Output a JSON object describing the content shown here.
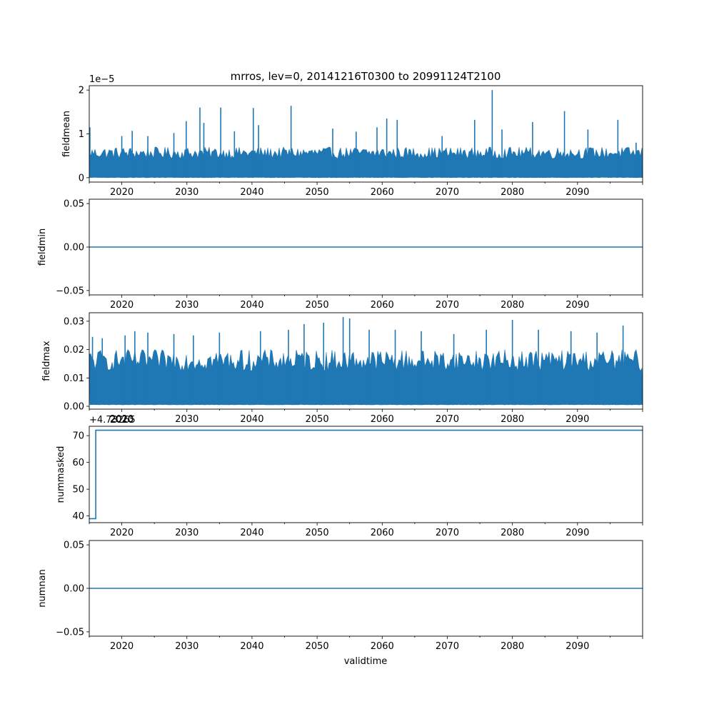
{
  "figure": {
    "title": "mrros, lev=0, 20141216T0300 to 20991124T2100",
    "xlabel": "validtime",
    "line_color": "#1f77b4"
  },
  "chart_data": [
    {
      "type": "line",
      "ylabel": "fieldmean",
      "xlim": [
        2015.0,
        2100.0
      ],
      "ylim": [
        -1e-06,
        2.1e-05
      ],
      "x_ticks": [
        "2020",
        "2030",
        "2040",
        "2050",
        "2060",
        "2070",
        "2080",
        "2090"
      ],
      "y_ticks": [
        "0",
        "1",
        "2"
      ],
      "y_tick_values": [
        0,
        1e-05,
        2e-05
      ],
      "offset_text": "1e−5",
      "band": {
        "low": 0.0,
        "high_typical": 7e-06
      },
      "spikes": [
        {
          "x": 2015.1,
          "y": 1.15e-05
        },
        {
          "x": 2020.0,
          "y": 9.5e-06
        },
        {
          "x": 2021.6,
          "y": 1.07e-05
        },
        {
          "x": 2024.0,
          "y": 9.5e-06
        },
        {
          "x": 2028.0,
          "y": 1.02e-05
        },
        {
          "x": 2029.9,
          "y": 1.29e-05
        },
        {
          "x": 2032.0,
          "y": 1.6e-05
        },
        {
          "x": 2032.6,
          "y": 1.25e-05
        },
        {
          "x": 2035.2,
          "y": 1.6e-05
        },
        {
          "x": 2037.3,
          "y": 1.06e-05
        },
        {
          "x": 2040.2,
          "y": 1.59e-05
        },
        {
          "x": 2041.0,
          "y": 1.2e-05
        },
        {
          "x": 2046.0,
          "y": 1.64e-05
        },
        {
          "x": 2052.4,
          "y": 1.12e-05
        },
        {
          "x": 2056.0,
          "y": 1.05e-05
        },
        {
          "x": 2059.2,
          "y": 1.15e-05
        },
        {
          "x": 2060.7,
          "y": 1.35e-05
        },
        {
          "x": 2062.3,
          "y": 1.32e-05
        },
        {
          "x": 2069.2,
          "y": 9.5e-06
        },
        {
          "x": 2074.2,
          "y": 1.32e-05
        },
        {
          "x": 2076.9,
          "y": 2e-05
        },
        {
          "x": 2078.4,
          "y": 1.1e-05
        },
        {
          "x": 2083.1,
          "y": 1.27e-05
        },
        {
          "x": 2088.0,
          "y": 1.52e-05
        },
        {
          "x": 2091.6,
          "y": 1.1e-05
        },
        {
          "x": 2096.2,
          "y": 1.32e-05
        },
        {
          "x": 2099.0,
          "y": 8e-06
        }
      ]
    },
    {
      "type": "line",
      "ylabel": "fieldmin",
      "xlim": [
        2015.0,
        2100.0
      ],
      "ylim": [
        -0.055,
        0.055
      ],
      "x_ticks": [
        "2020",
        "2030",
        "2040",
        "2050",
        "2060",
        "2070",
        "2080",
        "2090"
      ],
      "y_ticks": [
        "−0.05",
        "0.00",
        "0.05"
      ],
      "y_tick_values": [
        -0.05,
        0.0,
        0.05
      ],
      "series": [
        {
          "x": [
            2015.0,
            2100.0
          ],
          "y": [
            0.0,
            0.0
          ]
        }
      ]
    },
    {
      "type": "line",
      "ylabel": "fieldmax",
      "xlim": [
        2015.0,
        2100.0
      ],
      "ylim": [
        -0.001,
        0.033
      ],
      "x_ticks": [
        "2020",
        "2030",
        "2040",
        "2050",
        "2060",
        "2070",
        "2080",
        "2090"
      ],
      "y_ticks": [
        "0.00",
        "0.01",
        "0.02",
        "0.03"
      ],
      "y_tick_values": [
        0.0,
        0.01,
        0.02,
        0.03
      ],
      "band": {
        "low": 0.0005,
        "high_typical": 0.02
      },
      "spikes": [
        {
          "x": 2015.5,
          "y": 0.0245
        },
        {
          "x": 2017.0,
          "y": 0.024
        },
        {
          "x": 2020.5,
          "y": 0.025
        },
        {
          "x": 2022.0,
          "y": 0.0265
        },
        {
          "x": 2024.0,
          "y": 0.026
        },
        {
          "x": 2028.0,
          "y": 0.0255
        },
        {
          "x": 2031.0,
          "y": 0.025
        },
        {
          "x": 2035.0,
          "y": 0.026
        },
        {
          "x": 2041.3,
          "y": 0.0265
        },
        {
          "x": 2045.6,
          "y": 0.027
        },
        {
          "x": 2048.0,
          "y": 0.029
        },
        {
          "x": 2051.0,
          "y": 0.0295
        },
        {
          "x": 2054.0,
          "y": 0.0315
        },
        {
          "x": 2055.0,
          "y": 0.031
        },
        {
          "x": 2058.0,
          "y": 0.027
        },
        {
          "x": 2062.0,
          "y": 0.027
        },
        {
          "x": 2066.0,
          "y": 0.0265
        },
        {
          "x": 2071.0,
          "y": 0.0255
        },
        {
          "x": 2076.0,
          "y": 0.027
        },
        {
          "x": 2080.0,
          "y": 0.0305
        },
        {
          "x": 2084.0,
          "y": 0.027
        },
        {
          "x": 2089.0,
          "y": 0.0265
        },
        {
          "x": 2093.0,
          "y": 0.026
        },
        {
          "x": 2097.0,
          "y": 0.0285
        }
      ]
    },
    {
      "type": "line",
      "ylabel": "nummasked",
      "xlim": [
        2015.0,
        2100.0
      ],
      "ylim": [
        37.5,
        73.5
      ],
      "x_ticks": [
        "2020",
        "2030",
        "2040",
        "2050",
        "2060",
        "2070",
        "2080",
        "2090"
      ],
      "y_ticks": [
        "40",
        "50",
        "60",
        "70"
      ],
      "y_tick_values": [
        40,
        50,
        60,
        70
      ],
      "offset_text": "+4.73265",
      "overlap_text": "2020",
      "series": [
        {
          "x": [
            2015.0,
            2016.0,
            2016.0,
            2100.0
          ],
          "y": [
            39.0,
            39.0,
            72.0,
            72.0
          ]
        }
      ]
    },
    {
      "type": "line",
      "ylabel": "numnan",
      "xlim": [
        2015.0,
        2100.0
      ],
      "ylim": [
        -0.055,
        0.055
      ],
      "x_ticks": [
        "2020",
        "2030",
        "2040",
        "2050",
        "2060",
        "2070",
        "2080",
        "2090"
      ],
      "y_ticks": [
        "−0.05",
        "0.00",
        "0.05"
      ],
      "y_tick_values": [
        -0.05,
        0.0,
        0.05
      ],
      "series": [
        {
          "x": [
            2015.0,
            2100.0
          ],
          "y": [
            0.0,
            0.0
          ]
        }
      ]
    }
  ]
}
